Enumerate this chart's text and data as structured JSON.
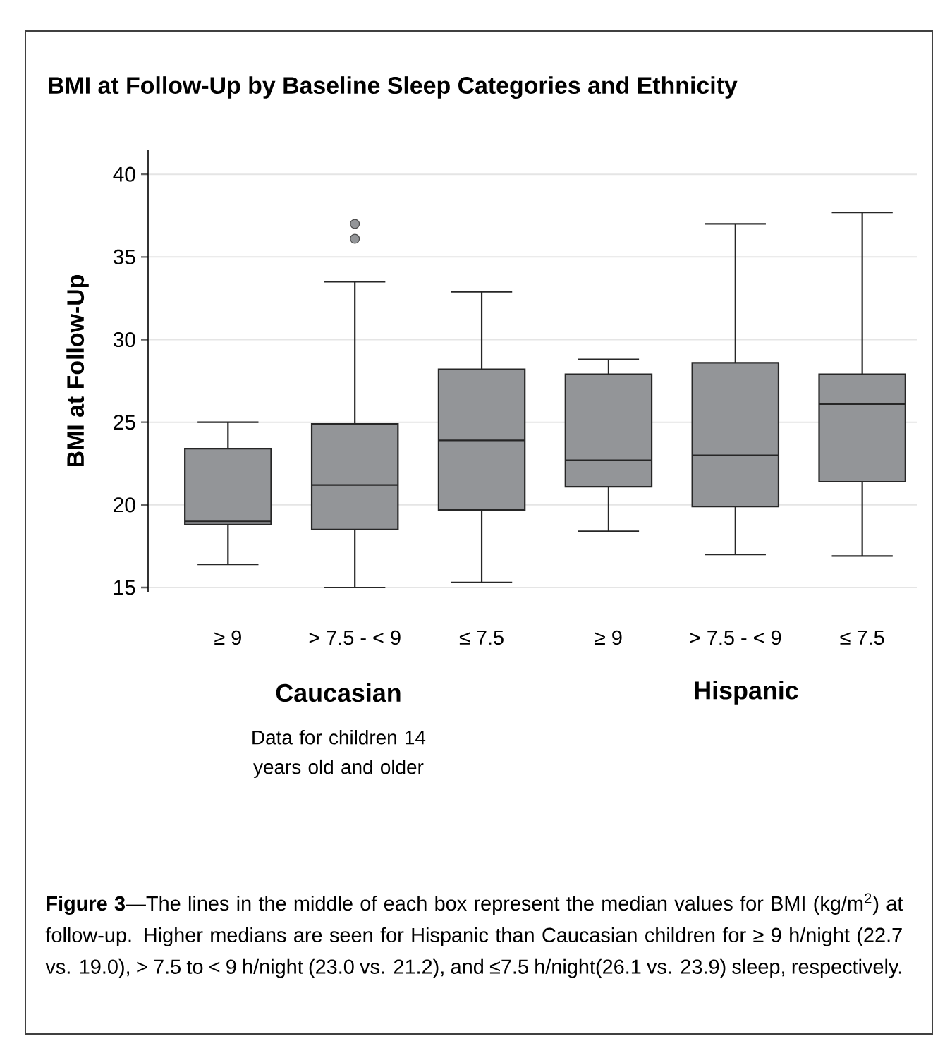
{
  "chart_data": {
    "type": "box",
    "title": "BMI at Follow-Up by Baseline Sleep Categories and Ethnicity",
    "ylabel": "BMI at Follow-Up",
    "categories": [
      "≥ 9",
      "> 7.5 - < 9",
      "≤ 7.5",
      "≥ 9",
      "> 7.5 - < 9",
      "≤ 7.5"
    ],
    "series": [
      {
        "color": "#939598",
        "boxes": [
          {
            "low": 16.4,
            "q1": 18.8,
            "median": 19.0,
            "q3": 23.4,
            "high": 25.0
          },
          {
            "low": 15.0,
            "q1": 18.5,
            "median": 21.2,
            "q3": 24.9,
            "high": 33.5,
            "outliers": [
              36.1,
              37.0
            ]
          },
          {
            "low": 15.3,
            "q1": 19.7,
            "median": 23.9,
            "q3": 28.2,
            "high": 32.9
          },
          {
            "low": 18.4,
            "q1": 21.1,
            "median": 22.7,
            "q3": 27.9,
            "high": 28.8
          },
          {
            "low": 17.0,
            "q1": 19.9,
            "median": 23.0,
            "q3": 28.6,
            "high": 37.0
          },
          {
            "low": 16.9,
            "q1": 21.4,
            "median": 26.1,
            "q3": 27.9,
            "high": 37.7
          }
        ]
      }
    ],
    "ylim": [
      14.7,
      41.5
    ],
    "yticks": [
      15,
      20,
      25,
      30,
      35,
      40
    ],
    "grid": "y",
    "annotations": [
      "Caucasian",
      "Hispanic",
      "Data for children 14 years old and older",
      "**Figure 3**—The lines in the middle of each box represent the median values for BMI (kg/m$^{2}$) at follow-up. Higher medians are seen for Hispanic than Caucasian children for ≥ 9 h/night (22.7 vs. 19.0), > 7.5 to < 9 h/night (23.0 vs. 21.2), and ≤7.5 h/night(26.1 vs. 23.9) sleep, respectively."
    ]
  }
}
